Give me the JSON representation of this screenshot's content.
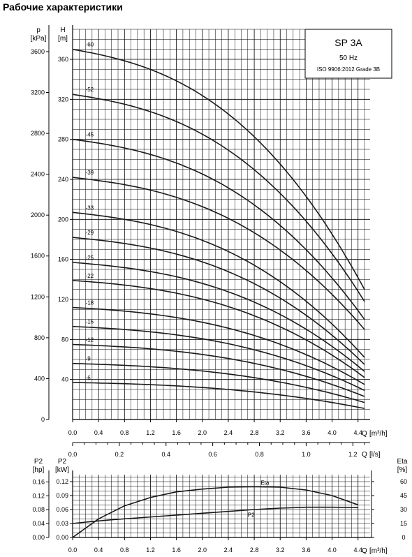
{
  "page_title": "Рабочие характеристики",
  "chart_data": [
    {
      "type": "line",
      "name_box": {
        "model": "SP 3A",
        "freq": "50 Hz",
        "standard": "ISO 9906:2012 Grade 3B"
      },
      "y_left_label": "p",
      "y_left_unit": "[kPa]",
      "y_right_label": "H",
      "y_right_unit": "[m]",
      "x_label": "Q",
      "x_unit": "[m³/h]",
      "x2_label": "Q",
      "x2_unit": "[l/s]",
      "xlim": [
        0,
        4.5
      ],
      "ylim_h": [
        0,
        390
      ],
      "ylim_p": [
        0,
        3800
      ],
      "x_ticks": [
        "0.0",
        "0.4",
        "0.8",
        "1.2",
        "1.6",
        "2.0",
        "2.4",
        "2.8",
        "3.2",
        "3.6",
        "4.0",
        "4.4"
      ],
      "x2_ticks": [
        "0.0",
        "0.2",
        "0.4",
        "0.6",
        "0.8",
        "1.0",
        "1.2"
      ],
      "h_ticks": [
        "40",
        "80",
        "120",
        "160",
        "200",
        "240",
        "280",
        "320",
        "360"
      ],
      "p_ticks": [
        "0",
        "400",
        "800",
        "1200",
        "1600",
        "2000",
        "2400",
        "2800",
        "3200",
        "3600"
      ],
      "grid": true,
      "series": [
        {
          "name": "60",
          "h0": 370,
          "h_end": 130
        },
        {
          "name": "52",
          "h0": 325,
          "h_end": 118
        },
        {
          "name": "45",
          "h0": 280,
          "h_end": 100
        },
        {
          "name": "39",
          "h0": 242,
          "h_end": 90
        },
        {
          "name": "33",
          "h0": 207,
          "h_end": 62
        },
        {
          "name": "29",
          "h0": 182,
          "h_end": 55
        },
        {
          "name": "25",
          "h0": 157,
          "h_end": 48
        },
        {
          "name": "22",
          "h0": 139,
          "h_end": 42
        },
        {
          "name": "18",
          "h0": 112,
          "h_end": 35
        },
        {
          "name": "15",
          "h0": 93,
          "h_end": 29
        },
        {
          "name": "12",
          "h0": 75,
          "h_end": 23
        },
        {
          "name": "9",
          "h0": 56,
          "h_end": 17
        },
        {
          "name": "6",
          "h0": 37,
          "h_end": 11
        }
      ]
    },
    {
      "type": "line",
      "y_left_label": "P2",
      "y_left_unit": "[hp]",
      "y_left2_label": "P2",
      "y_left2_unit": "[kW]",
      "y_right_label": "Eta",
      "y_right_unit": "[%]",
      "x_label": "Q",
      "x_unit": "[m³/h]",
      "xlim": [
        0,
        4.5
      ],
      "ylim_kw": [
        0,
        0.135
      ],
      "x_ticks": [
        "0.0",
        "0.4",
        "0.8",
        "1.2",
        "1.6",
        "2.0",
        "2.4",
        "2.8",
        "3.2",
        "3.6",
        "4.0",
        "4.4"
      ],
      "hp_ticks": [
        "0.00",
        "0.04",
        "0.08",
        "0.12",
        "0.16"
      ],
      "kw_ticks": [
        "0.00",
        "0.03",
        "0.06",
        "0.09",
        "0.12"
      ],
      "eta_ticks": [
        "0",
        "15",
        "30",
        "45",
        "60"
      ],
      "grid": true,
      "series": [
        {
          "name": "Eta",
          "x": [
            0,
            0.4,
            0.8,
            1.2,
            1.6,
            2.0,
            2.4,
            2.8,
            3.2,
            3.6,
            4.0,
            4.4
          ],
          "y": [
            0,
            20,
            34,
            43,
            49,
            52,
            54,
            54.5,
            54,
            51,
            45,
            35
          ]
        },
        {
          "name": "P2",
          "x": [
            0,
            0.2,
            0.6,
            1.0,
            1.6,
            2.0,
            2.4,
            2.8,
            3.2,
            3.6,
            4.0,
            4.4
          ],
          "y": [
            0.03,
            0.033,
            0.038,
            0.042,
            0.048,
            0.052,
            0.056,
            0.06,
            0.063,
            0.065,
            0.065,
            0.064
          ]
        }
      ]
    }
  ]
}
